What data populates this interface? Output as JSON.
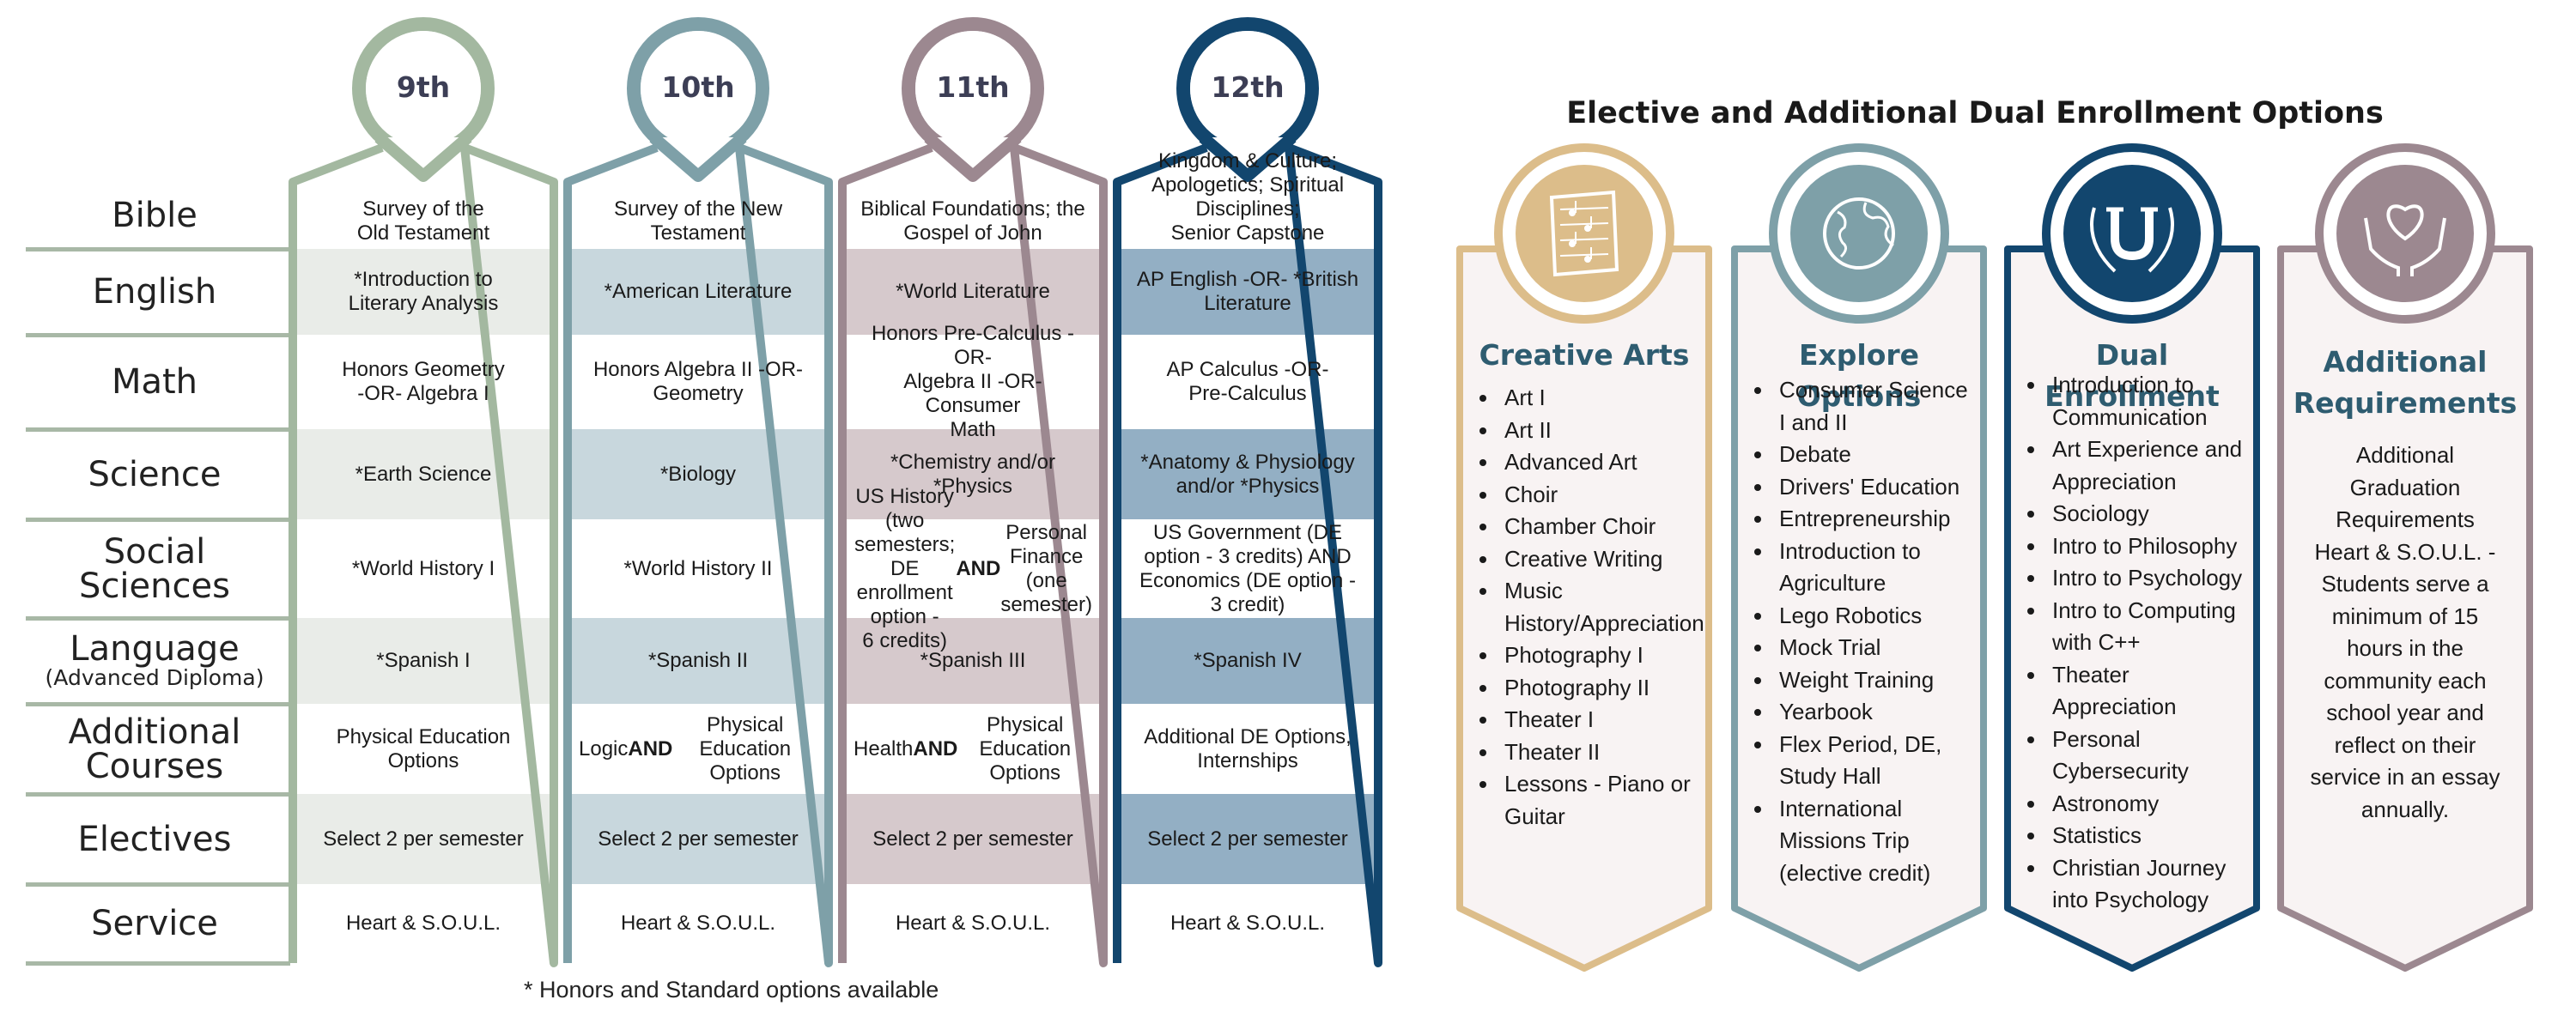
{
  "grid": {
    "row_labels": [
      {
        "label": "Bible"
      },
      {
        "label": "English"
      },
      {
        "label": "Math"
      },
      {
        "label": "Science"
      },
      {
        "label": "Social Sciences"
      },
      {
        "label": "Language",
        "sub": "(Advanced Diploma)"
      },
      {
        "label": "Additional Courses"
      },
      {
        "label": "Electives"
      },
      {
        "label": "Service"
      }
    ],
    "grades": [
      {
        "label": "9th",
        "color": "#a3b8a0",
        "shade": "#e9ece8",
        "cells": [
          "Survey of the\nOld Testament",
          "*Introduction to\nLiterary Analysis",
          "Honors Geometry\n-OR- Algebra I",
          "*Earth Science",
          "*World History I",
          "*Spanish I",
          "Physical Education\nOptions",
          "Select 2 per semester",
          "Heart & S.O.U.L."
        ]
      },
      {
        "label": "10th",
        "color": "#7ea0a8",
        "shade": "#c8d7dd",
        "cells": [
          "Survey of the New\nTestament",
          "*American Literature",
          "Honors Algebra II -OR-\nGeometry",
          "*Biology",
          "*World History II",
          "*Spanish II",
          "Logic AND Physical\nEducation Options",
          "Select 2 per semester",
          "Heart & S.O.U.L."
        ]
      },
      {
        "label": "11th",
        "color": "#9c8890",
        "shade": "#d6c9cc",
        "cells": [
          "Biblical Foundations; the\nGospel of John",
          "*World Literature",
          "Honors Pre-Calculus -OR-\nAlgebra II -OR- Consumer\nMath",
          "*Chemistry and/or\n*Physics",
          "US History (two semesters;\nDE enrollment option -\n6 credits) AND Personal\nFinance (one semester)",
          "*Spanish III",
          "Health AND Physical\nEducation Options",
          "Select 2 per semester",
          "Heart & S.O.U.L."
        ]
      },
      {
        "label": "12th",
        "color": "#12466e",
        "shade": "#93afc4",
        "cells": [
          "Kingdom & Culture;\nApologetics; Spiritual\nDisciplines;\nSenior Capstone",
          "AP English -OR- *British\nLiterature",
          "AP Calculus -OR-\nPre-Calculus",
          "*Anatomy & Physiology\nand/or *Physics",
          "US Government (DE\noption - 3 credits) AND\nEconomics (DE option -\n3 credit)",
          "*Spanish IV",
          "Additional DE Options,\nInternships",
          "Select 2 per semester",
          "Heart & S.O.U.L."
        ]
      }
    ],
    "footnote": "* Honors and Standard options available"
  },
  "electives": {
    "title": "Elective and Additional Dual Enrollment Options",
    "cards": [
      {
        "title": "Creative Arts",
        "icon": "sheet-music-icon",
        "color": "#dcbd8a",
        "fill": "#f8f3f3",
        "title_color": "#2e5c70",
        "items": [
          "Art I",
          "Art II",
          "Advanced Art",
          "Choir",
          "Chamber Choir",
          "Creative Writing",
          "Music\nHistory/Appreciation",
          "Photography I",
          "Photography II",
          "Theater I",
          "Theater II",
          "Lessons - Piano or\nGuitar"
        ]
      },
      {
        "title": "Explore Options",
        "icon": "globe-icon",
        "color": "#7ea0a8",
        "fill": "#f8f3f3",
        "title_color": "#2e5c70",
        "items": [
          "Consumer Science\nI and II",
          "Debate",
          "Drivers' Education",
          "Entrepreneurship",
          "Introduction to\nAgriculture",
          "Lego Robotics",
          "Mock Trial",
          "Weight Training",
          "Yearbook",
          "Flex Period, DE,\nStudy Hall",
          "International\nMissions Trip\n(elective credit)"
        ]
      },
      {
        "title": "Dual Enrollment",
        "icon": "university-laurel-icon",
        "color": "#12466e",
        "fill": "#f8f3f3",
        "title_color": "#2e5c70",
        "items": [
          "Introduction to\nCommunication",
          "Art Experience and\nAppreciation",
          "Sociology",
          "Intro to Philosophy",
          "Intro to Psychology",
          "Intro to Computing\nwith C++",
          "Theater\nAppreciation",
          "Personal\nCybersecurity",
          "Astronomy",
          "Statistics",
          "Christian Journey\ninto Psychology"
        ]
      },
      {
        "title": "Additional\nRequirements",
        "icon": "heart-hands-icon",
        "color": "#9c8890",
        "fill": "#f8f3f3",
        "title_color": "#2e5c70",
        "text": "Additional\nGraduation\nRequirements\nHeart & S.O.U.L. -\nStudents serve a\nminimum of 15\nhours in the\ncommunity each\nschool year and\nreflect on their\nservice in an essay\nannually."
      }
    ]
  }
}
